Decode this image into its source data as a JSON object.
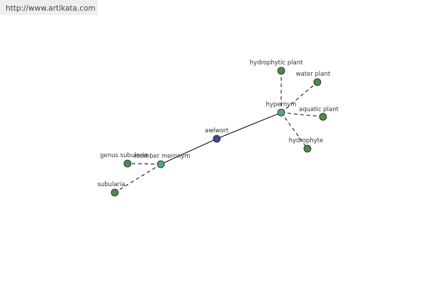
{
  "header": {
    "url": "http://www.artikata.com"
  },
  "nodes": [
    {
      "label": "awlwort"
    },
    {
      "label": "hypernym"
    },
    {
      "label": "member meronym"
    },
    {
      "label": "hydrophytic plant"
    },
    {
      "label": "water plant"
    },
    {
      "label": "aquatic plant"
    },
    {
      "label": "hydrophyte"
    },
    {
      "label": "genus subularia"
    },
    {
      "label": "subularia"
    }
  ]
}
